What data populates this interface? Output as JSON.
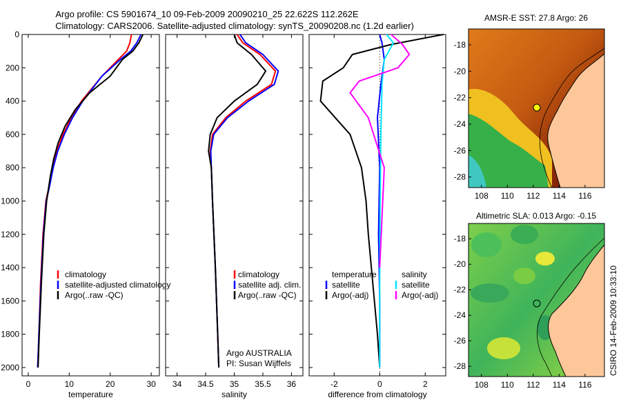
{
  "header": {
    "title_line1": "Argo profile: CS 5901674_10 09-Feb-2009 20090210_25 22.622S 112.262E",
    "title_line2": "Climatology: CARS2006. Satellite-adjusted climatology: synTS_20090208.nc (1.2d earlier)"
  },
  "side_label": "CSIRO 14-Feb-2009 10:33:10",
  "colors": {
    "climatology": "#ff0000",
    "satellite": "#0000ff",
    "argo": "#000000",
    "satellite_salinity": "#00e5ff",
    "argo_salinity": "#ff00ff",
    "land": "#fdc79a"
  },
  "chart_data": [
    {
      "type": "line",
      "xlabel": "temperature",
      "xlim": [
        -1.5,
        32
      ],
      "ylim": [
        2050,
        0
      ],
      "xticks": [
        0,
        10,
        20,
        30
      ],
      "yticks": [
        0,
        200,
        400,
        600,
        800,
        1000,
        1200,
        1400,
        1600,
        1800,
        2000
      ],
      "legend": {
        "placement": "lower-right",
        "items": [
          "climatology",
          "satellite-adjusted climatology",
          "Argo(..raw -QC)"
        ]
      },
      "series": [
        {
          "name": "climatology",
          "color": "#ff0000",
          "x": [
            25.2,
            24.8,
            24.0,
            22.0,
            18.0,
            13.0,
            10.5,
            8.5,
            7.0,
            6.0,
            5.2,
            4.3,
            3.6,
            3.0,
            2.6,
            2.3
          ],
          "y": [
            0,
            50,
            100,
            150,
            250,
            400,
            500,
            600,
            700,
            800,
            900,
            1000,
            1200,
            1500,
            1800,
            2000
          ]
        },
        {
          "name": "satellite-adjusted climatology",
          "color": "#0000ff",
          "x": [
            27.5,
            26.5,
            25.0,
            22.5,
            18.0,
            13.3,
            10.8,
            8.8,
            7.2,
            6.1,
            5.3,
            4.4,
            3.7,
            3.1,
            2.6,
            2.3
          ],
          "y": [
            0,
            50,
            100,
            150,
            250,
            400,
            500,
            600,
            700,
            800,
            900,
            1000,
            1200,
            1500,
            1800,
            2000
          ]
        },
        {
          "name": "Argo(..raw -QC)",
          "color": "#000000",
          "x": [
            28.0,
            27.0,
            25.5,
            23.0,
            20.0,
            15.0,
            11.5,
            9.0,
            7.3,
            6.2,
            5.4,
            4.5,
            3.8,
            3.2,
            2.7,
            2.4
          ],
          "y": [
            0,
            50,
            100,
            150,
            250,
            350,
            450,
            550,
            650,
            750,
            850,
            1000,
            1200,
            1500,
            1800,
            2000
          ]
        }
      ]
    },
    {
      "type": "line",
      "xlabel": "salinity",
      "xlim": [
        33.8,
        36.2
      ],
      "ylim": [
        2050,
        0
      ],
      "xticks": [
        34,
        34.5,
        35,
        35.5,
        36
      ],
      "legend": {
        "placement": "lower-right",
        "items": [
          "climatology",
          "satellite adj. clim.",
          "Argo(..raw -QC)"
        ]
      },
      "annotation": [
        "Argo AUSTRALIA",
        "PI: Susan Wijffels"
      ],
      "series": [
        {
          "name": "climatology",
          "color": "#ff0000",
          "x": [
            35.05,
            35.15,
            35.45,
            35.72,
            35.65,
            35.2,
            34.85,
            34.62,
            34.58,
            34.6,
            34.62,
            34.67,
            34.71,
            34.73
          ],
          "y": [
            0,
            50,
            120,
            220,
            300,
            400,
            500,
            600,
            700,
            800,
            1000,
            1400,
            1800,
            2000
          ]
        },
        {
          "name": "satellite adj. clim.",
          "color": "#0000ff",
          "x": [
            35.1,
            35.2,
            35.5,
            35.77,
            35.7,
            35.25,
            34.88,
            34.64,
            34.59,
            34.6,
            34.62,
            34.67,
            34.71,
            34.73
          ],
          "y": [
            0,
            50,
            120,
            220,
            300,
            400,
            500,
            600,
            700,
            800,
            1000,
            1400,
            1800,
            2000
          ]
        },
        {
          "name": "Argo(..raw -QC)",
          "color": "#000000",
          "x": [
            35.0,
            35.05,
            35.3,
            35.55,
            35.4,
            35.0,
            34.7,
            34.58,
            34.55,
            34.6,
            34.62,
            34.67,
            34.71,
            34.73
          ],
          "y": [
            0,
            50,
            120,
            220,
            300,
            400,
            500,
            600,
            700,
            800,
            1000,
            1400,
            1800,
            2000
          ]
        }
      ]
    },
    {
      "type": "line",
      "xlabel": "difference from climatology",
      "xlim": [
        -3.1,
        2.9
      ],
      "ylim": [
        2050,
        0
      ],
      "xticks": [
        -2,
        0,
        2
      ],
      "legend": {
        "placement": "lower-center",
        "items": [
          "temperature",
          "satellite",
          "Argo(-adj)",
          "salinity",
          "satellite",
          "Argo(-adj)"
        ]
      },
      "series": [
        {
          "name": "satellite",
          "color": "#0000ff",
          "x": [
            0.0,
            0.1,
            0.2,
            0.05,
            -0.1,
            0.0,
            -0.05,
            0.0,
            0.0
          ],
          "y": [
            0,
            50,
            150,
            300,
            500,
            800,
            1200,
            1600,
            2000
          ]
        },
        {
          "name": "Argo(-adj)",
          "color": "#000000",
          "x": [
            2.8,
            0.5,
            -1.2,
            -1.6,
            -2.5,
            -2.6,
            -1.3,
            -0.8,
            -0.6,
            -0.5,
            -0.3,
            -0.1,
            0.0
          ],
          "y": [
            0,
            60,
            120,
            200,
            280,
            400,
            600,
            800,
            1000,
            1200,
            1500,
            1800,
            2000
          ]
        },
        {
          "name": "satellite",
          "color": "#00e5ff",
          "x": [
            0.3,
            0.6,
            0.2,
            0.1,
            0.05,
            0.02,
            0.0,
            0.0
          ],
          "y": [
            0,
            50,
            150,
            300,
            600,
            1000,
            1500,
            2000
          ]
        },
        {
          "name": "Argo(-adj)",
          "color": "#ff00ff",
          "x": [
            0.5,
            1.0,
            1.3,
            0.8,
            -0.9,
            -1.3,
            -0.5,
            0.2,
            0.0
          ],
          "y": [
            0,
            60,
            120,
            200,
            280,
            350,
            500,
            800,
            1400
          ]
        }
      ]
    },
    {
      "type": "heatmap",
      "title": "AMSR-E SST: 27.8 Argo: 26",
      "xticks": [
        108,
        110,
        112,
        114,
        116
      ],
      "yticks": [
        -18,
        -20,
        -22,
        -24,
        -26,
        -28
      ],
      "xlim": [
        107,
        117.5
      ],
      "ylim": [
        -28.8,
        -16.8
      ],
      "marker": {
        "lon": 112.262,
        "lat": -22.622
      }
    },
    {
      "type": "heatmap",
      "title": "Altimetric SLA: 0.013 Argo: -0.15",
      "xticks": [
        108,
        110,
        112,
        114,
        116
      ],
      "yticks": [
        -18,
        -20,
        -22,
        -24,
        -26,
        -28
      ],
      "xlim": [
        107,
        117.5
      ],
      "ylim": [
        -28.8,
        -16.8
      ],
      "marker": {
        "lon": 112.262,
        "lat": -22.622
      }
    }
  ]
}
